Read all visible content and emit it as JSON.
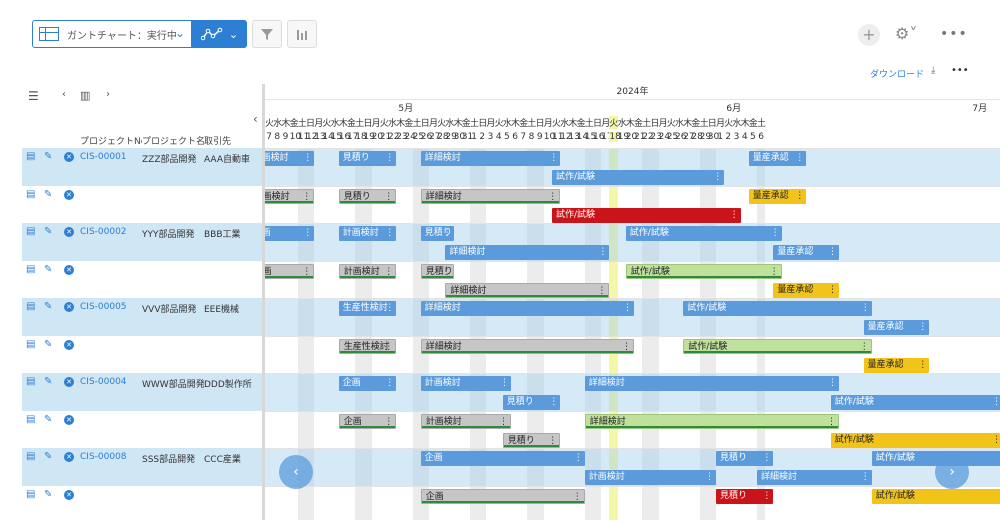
{
  "toolbar": {
    "view_label": "ガントチャート：実行中",
    "plus": "+",
    "gear_chevron": "⚙˅",
    "more": "•••"
  },
  "subbar": {
    "download_label": "ダウンロード",
    "download_icon": "⤓",
    "more": "•••"
  },
  "table": {
    "columns": [
      "プロジェクトNo",
      "プロジェクト名",
      "取引先"
    ],
    "rows": [
      {
        "no": "CIS-00001",
        "name": "ZZZ部品開発",
        "client": "AAA自動車",
        "shade": true
      },
      {
        "no": "",
        "name": "",
        "client": "",
        "shade": false
      },
      {
        "no": "CIS-00002",
        "name": "YYY部品開発",
        "client": "BBB工業",
        "shade": true
      },
      {
        "no": "",
        "name": "",
        "client": "",
        "shade": false
      },
      {
        "no": "CIS-00005",
        "name": "VVV部品開発",
        "client": "EEE機械",
        "shade": true
      },
      {
        "no": "",
        "name": "",
        "client": "",
        "shade": false
      },
      {
        "no": "CIS-00004",
        "name": "WWW部品開発",
        "client": "DDD製作所",
        "shade": true
      },
      {
        "no": "",
        "name": "",
        "client": "",
        "shade": false
      },
      {
        "no": "CIS-00008",
        "name": "SSS部品開発",
        "client": "CCC産業",
        "shade": true
      },
      {
        "no": "",
        "name": "",
        "client": "",
        "shade": false
      }
    ]
  },
  "timeline": {
    "year": "2024年",
    "months": [
      {
        "label": "5月",
        "day_index": 17
      },
      {
        "label": "6月",
        "day_index": 57
      },
      {
        "label": "7月",
        "day_index": 87
      }
    ],
    "days": [
      {
        "d": "7",
        "w": "火"
      },
      {
        "d": "8",
        "w": "水"
      },
      {
        "d": "9",
        "w": "木"
      },
      {
        "d": "10",
        "w": "金"
      },
      {
        "d": "11",
        "w": "土"
      },
      {
        "d": "12",
        "w": "日"
      },
      {
        "d": "13",
        "w": "月"
      },
      {
        "d": "14",
        "w": "火"
      },
      {
        "d": "15",
        "w": "水"
      },
      {
        "d": "16",
        "w": "木"
      },
      {
        "d": "17",
        "w": "金"
      },
      {
        "d": "18",
        "w": "土"
      },
      {
        "d": "19",
        "w": "日"
      },
      {
        "d": "20",
        "w": "月"
      },
      {
        "d": "21",
        "w": "火"
      },
      {
        "d": "22",
        "w": "水"
      },
      {
        "d": "23",
        "w": "木"
      },
      {
        "d": "24",
        "w": "金"
      },
      {
        "d": "25",
        "w": "土"
      },
      {
        "d": "26",
        "w": "日"
      },
      {
        "d": "27",
        "w": "月"
      },
      {
        "d": "28",
        "w": "火"
      },
      {
        "d": "29",
        "w": "水"
      },
      {
        "d": "30",
        "w": "木"
      },
      {
        "d": "31",
        "w": "金"
      },
      {
        "d": "1",
        "w": "土"
      },
      {
        "d": "2",
        "w": "日"
      },
      {
        "d": "3",
        "w": "月"
      },
      {
        "d": "4",
        "w": "火"
      },
      {
        "d": "5",
        "w": "水"
      },
      {
        "d": "6",
        "w": "木"
      },
      {
        "d": "7",
        "w": "金"
      },
      {
        "d": "8",
        "w": "土"
      },
      {
        "d": "9",
        "w": "日"
      },
      {
        "d": "10",
        "w": "月"
      },
      {
        "d": "11",
        "w": "火"
      },
      {
        "d": "12",
        "w": "水"
      },
      {
        "d": "13",
        "w": "木"
      },
      {
        "d": "14",
        "w": "金"
      },
      {
        "d": "15",
        "w": "土"
      },
      {
        "d": "16",
        "w": "日"
      },
      {
        "d": "17",
        "w": "月"
      },
      {
        "d": "18",
        "w": "火"
      },
      {
        "d": "19",
        "w": "水"
      },
      {
        "d": "20",
        "w": "木"
      },
      {
        "d": "21",
        "w": "金"
      },
      {
        "d": "22",
        "w": "土"
      },
      {
        "d": "23",
        "w": "日"
      },
      {
        "d": "24",
        "w": "月"
      },
      {
        "d": "25",
        "w": "火"
      },
      {
        "d": "26",
        "w": "水"
      },
      {
        "d": "27",
        "w": "木"
      },
      {
        "d": "28",
        "w": "金"
      },
      {
        "d": "29",
        "w": "土"
      },
      {
        "d": "30",
        "w": "日"
      },
      {
        "d": "1",
        "w": "月"
      },
      {
        "d": "2",
        "w": "火"
      },
      {
        "d": "3",
        "w": "水"
      },
      {
        "d": "4",
        "w": "木"
      },
      {
        "d": "5",
        "w": "金"
      },
      {
        "d": "6",
        "w": "土"
      }
    ],
    "today_index": 42,
    "prev_icon": "‹",
    "next_icon": "›"
  },
  "tasks": [
    {
      "label": "計画検討",
      "row": 0,
      "lane": 0,
      "start": -2,
      "end": 6,
      "color": "blue"
    },
    {
      "label": "見積り",
      "row": 0,
      "lane": 0,
      "start": 9,
      "end": 16,
      "color": "blue"
    },
    {
      "label": "詳細検討",
      "row": 0,
      "lane": 0,
      "start": 19,
      "end": 36,
      "color": "blue"
    },
    {
      "label": "試作/試験",
      "row": 0,
      "lane": 1,
      "start": 35,
      "end": 56,
      "color": "blue"
    },
    {
      "label": "量産承認",
      "row": 0,
      "lane": 0,
      "start": 59,
      "end": 66,
      "color": "blue"
    },
    {
      "label": "計画検討",
      "row": 1,
      "lane": 0,
      "start": -2,
      "end": 6,
      "color": "gray"
    },
    {
      "label": "見積り",
      "row": 1,
      "lane": 0,
      "start": 9,
      "end": 16,
      "color": "gray"
    },
    {
      "label": "詳細検討",
      "row": 1,
      "lane": 0,
      "start": 19,
      "end": 36,
      "color": "gray"
    },
    {
      "label": "量産承認",
      "row": 1,
      "lane": 0,
      "start": 59,
      "end": 66,
      "color": "yellow"
    },
    {
      "label": "試作/試験",
      "row": 1,
      "lane": 1,
      "start": 35,
      "end": 58,
      "color": "red"
    },
    {
      "label": "企画",
      "row": 2,
      "lane": 0,
      "start": -2,
      "end": 6,
      "color": "blue"
    },
    {
      "label": "計画検討",
      "row": 2,
      "lane": 0,
      "start": 9,
      "end": 16,
      "color": "blue"
    },
    {
      "label": "見積り",
      "row": 2,
      "lane": 0,
      "start": 19,
      "end": 23,
      "color": "blue"
    },
    {
      "label": "試作/試験",
      "row": 2,
      "lane": 0,
      "start": 44,
      "end": 63,
      "color": "blue"
    },
    {
      "label": "詳細検討",
      "row": 2,
      "lane": 1,
      "start": 22,
      "end": 42,
      "color": "blue"
    },
    {
      "label": "量産承認",
      "row": 2,
      "lane": 1,
      "start": 62,
      "end": 70,
      "color": "blue"
    },
    {
      "label": "企画",
      "row": 3,
      "lane": 0,
      "start": -2,
      "end": 6,
      "color": "gray"
    },
    {
      "label": "計画検討",
      "row": 3,
      "lane": 0,
      "start": 9,
      "end": 16,
      "color": "gray"
    },
    {
      "label": "見積り",
      "row": 3,
      "lane": 0,
      "start": 19,
      "end": 23,
      "color": "gray"
    },
    {
      "label": "試作/試験",
      "row": 3,
      "lane": 0,
      "start": 44,
      "end": 63,
      "color": "green"
    },
    {
      "label": "詳細検討",
      "row": 3,
      "lane": 1,
      "start": 22,
      "end": 42,
      "color": "gray"
    },
    {
      "label": "量産承認",
      "row": 3,
      "lane": 1,
      "start": 62,
      "end": 70,
      "color": "yellow"
    },
    {
      "label": "生産性検討",
      "row": 4,
      "lane": 0,
      "start": 9,
      "end": 16,
      "color": "blue"
    },
    {
      "label": "詳細検討",
      "row": 4,
      "lane": 0,
      "start": 19,
      "end": 45,
      "color": "blue"
    },
    {
      "label": "試作/試験",
      "row": 4,
      "lane": 0,
      "start": 51,
      "end": 74,
      "color": "blue"
    },
    {
      "label": "量産承認",
      "row": 4,
      "lane": 1,
      "start": 73,
      "end": 81,
      "color": "blue"
    },
    {
      "label": "生産性検討",
      "row": 5,
      "lane": 0,
      "start": 9,
      "end": 16,
      "color": "gray"
    },
    {
      "label": "詳細検討",
      "row": 5,
      "lane": 0,
      "start": 19,
      "end": 45,
      "color": "gray"
    },
    {
      "label": "試作/試験",
      "row": 5,
      "lane": 0,
      "start": 51,
      "end": 74,
      "color": "green"
    },
    {
      "label": "量産承認",
      "row": 5,
      "lane": 1,
      "start": 73,
      "end": 81,
      "color": "yellow"
    },
    {
      "label": "企画",
      "row": 6,
      "lane": 0,
      "start": 9,
      "end": 16,
      "color": "blue"
    },
    {
      "label": "計画検討",
      "row": 6,
      "lane": 0,
      "start": 19,
      "end": 30,
      "color": "blue"
    },
    {
      "label": "詳細検討",
      "row": 6,
      "lane": 0,
      "start": 39,
      "end": 70,
      "color": "blue"
    },
    {
      "label": "見積り",
      "row": 6,
      "lane": 1,
      "start": 29,
      "end": 36,
      "color": "blue"
    },
    {
      "label": "試作/試験",
      "row": 6,
      "lane": 1,
      "start": 69,
      "end": 90,
      "color": "blue"
    },
    {
      "label": "企画",
      "row": 7,
      "lane": 0,
      "start": 9,
      "end": 16,
      "color": "gray"
    },
    {
      "label": "計画検討",
      "row": 7,
      "lane": 0,
      "start": 19,
      "end": 30,
      "color": "gray"
    },
    {
      "label": "詳細検討",
      "row": 7,
      "lane": 0,
      "start": 39,
      "end": 70,
      "color": "green"
    },
    {
      "label": "見積り",
      "row": 7,
      "lane": 1,
      "start": 29,
      "end": 36,
      "color": "gray"
    },
    {
      "label": "試作/試験",
      "row": 7,
      "lane": 1,
      "start": 69,
      "end": 90,
      "color": "yellow"
    },
    {
      "label": "企画",
      "row": 8,
      "lane": 0,
      "start": 19,
      "end": 39,
      "color": "blue"
    },
    {
      "label": "見積り",
      "row": 8,
      "lane": 0,
      "start": 55,
      "end": 62,
      "color": "blue"
    },
    {
      "label": "試作/試験",
      "row": 8,
      "lane": 0,
      "start": 74,
      "end": 92,
      "color": "blue"
    },
    {
      "label": "計画検討",
      "row": 8,
      "lane": 1,
      "start": 39,
      "end": 55,
      "color": "blue"
    },
    {
      "label": "詳細検討",
      "row": 8,
      "lane": 1,
      "start": 60,
      "end": 74,
      "color": "blue"
    },
    {
      "label": "企画",
      "row": 9,
      "lane": 0,
      "start": 19,
      "end": 39,
      "color": "gray"
    },
    {
      "label": "見積り",
      "row": 9,
      "lane": 0,
      "start": 55,
      "end": 62,
      "color": "red"
    },
    {
      "label": "試作/試験",
      "row": 9,
      "lane": 0,
      "start": 74,
      "end": 92,
      "color": "yellow"
    }
  ],
  "colors": {
    "accent": "#2d7fd4",
    "blue": "#5b9bdc",
    "red": "#c9141a",
    "yellow": "#f2c318",
    "green": "#bfe19c",
    "gray": "#c6c6c6",
    "today": "#f4f7a8"
  }
}
